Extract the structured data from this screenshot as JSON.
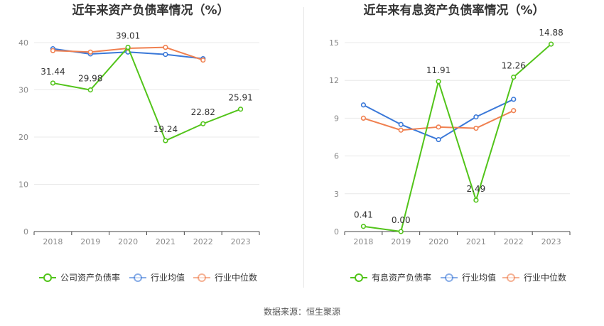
{
  "colors": {
    "company": "#52c41a",
    "industry_avg": "#3a78d8",
    "industry_median": "#f08050",
    "grid": "#e8e8e8",
    "axis": "#444444"
  },
  "source_text": "数据来源：恒生聚源",
  "chart_data": [
    {
      "type": "line",
      "title": "近年来资产负债率情况（%）",
      "categories": [
        "2018",
        "2019",
        "2020",
        "2021",
        "2022",
        "2023"
      ],
      "ylim": [
        0,
        40
      ],
      "yticks": [
        0,
        10,
        20,
        30,
        40
      ],
      "grid": true,
      "legend_position": "bottom",
      "series": [
        {
          "name": "公司资产负债率",
          "color_key": "company",
          "values": [
            31.44,
            29.98,
            39.01,
            19.24,
            22.82,
            25.91
          ],
          "labels": [
            "31.44",
            "29.98",
            "39.01",
            "19.24",
            "22.82",
            "25.91"
          ]
        },
        {
          "name": "行业均值",
          "color_key": "industry_avg",
          "values": [
            38.7,
            37.6,
            38.0,
            37.5,
            36.6,
            null
          ]
        },
        {
          "name": "行业中位数",
          "color_key": "industry_median",
          "values": [
            38.3,
            38.0,
            38.8,
            39.0,
            36.3,
            null
          ]
        }
      ]
    },
    {
      "type": "line",
      "title": "近年来有息资产负债率情况（%）",
      "categories": [
        "2018",
        "2019",
        "2020",
        "2021",
        "2022",
        "2023"
      ],
      "ylim": [
        0,
        15
      ],
      "yticks": [
        0,
        3,
        6,
        9,
        12,
        15
      ],
      "grid": true,
      "legend_position": "bottom",
      "series": [
        {
          "name": "有息资产负债率",
          "color_key": "company",
          "values": [
            0.41,
            0.0,
            11.91,
            2.49,
            12.26,
            14.88
          ],
          "labels": [
            "0.41",
            "0.00",
            "11.91",
            "2.49",
            "12.26",
            "14.88"
          ]
        },
        {
          "name": "行业均值",
          "color_key": "industry_avg",
          "values": [
            10.05,
            8.5,
            7.3,
            9.1,
            10.5,
            null
          ]
        },
        {
          "name": "行业中位数",
          "color_key": "industry_median",
          "values": [
            9.0,
            8.05,
            8.3,
            8.2,
            9.6,
            null
          ]
        }
      ]
    }
  ]
}
